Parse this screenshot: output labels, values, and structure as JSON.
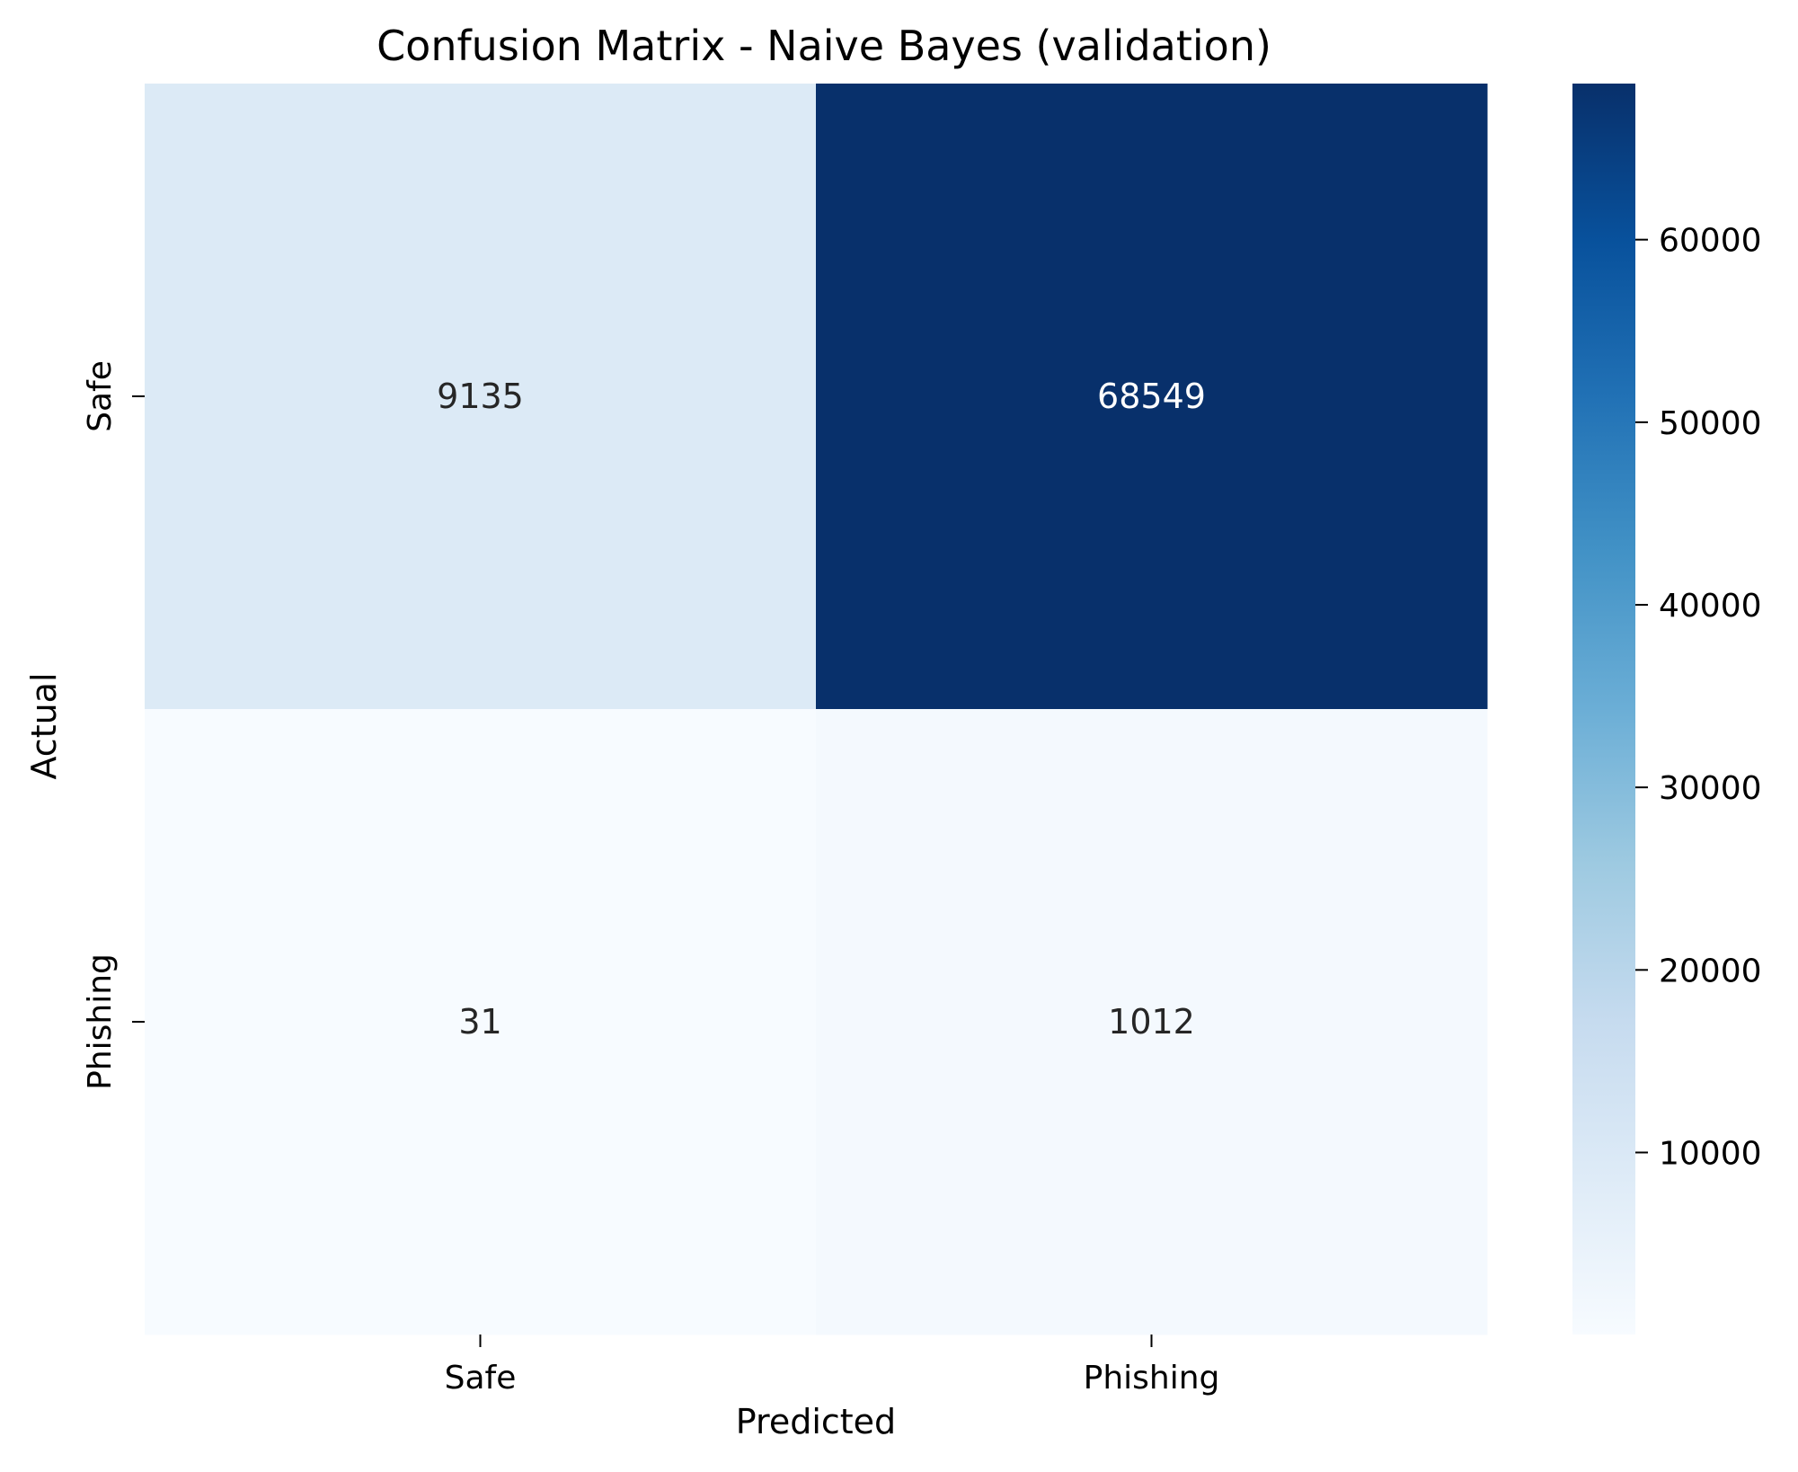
{
  "chart_data": {
    "type": "heatmap",
    "title": "Confusion Matrix - Naive Bayes (validation)",
    "xlabel": "Predicted",
    "ylabel": "Actual",
    "x_categories": [
      "Safe",
      "Phishing"
    ],
    "y_categories": [
      "Safe",
      "Phishing"
    ],
    "values": [
      [
        9135,
        68549
      ],
      [
        31,
        1012
      ]
    ],
    "colormap": "Blues",
    "colorbar": {
      "range": [
        31,
        68549
      ],
      "ticks": [
        10000,
        20000,
        30000,
        40000,
        50000,
        60000
      ],
      "tick_labels": [
        "10000",
        "20000",
        "30000",
        "40000",
        "50000",
        "60000"
      ]
    },
    "colors": {
      "min": "#f7fbff",
      "max": "#08306b",
      "text_dark": "#262626",
      "text_light": "#ffffff"
    }
  }
}
